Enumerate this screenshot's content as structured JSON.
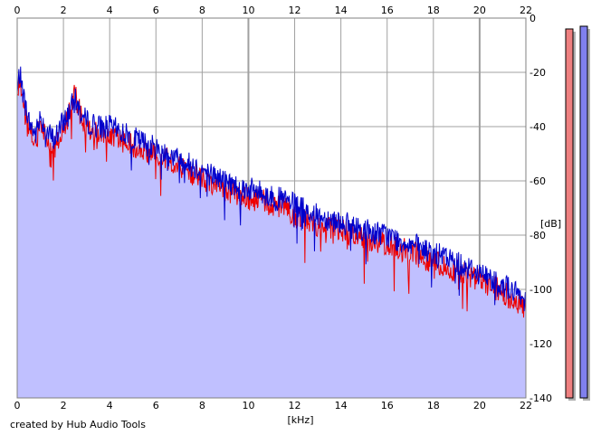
{
  "credit": "created by Hub Audio Tools",
  "chart_data": {
    "type": "area",
    "xlabel": "[kHz]",
    "ylabel": "[dB]",
    "xlim": [
      0,
      22
    ],
    "ylim": [
      -140,
      0
    ],
    "x_ticks": [
      0,
      2,
      4,
      6,
      8,
      10,
      12,
      14,
      16,
      18,
      20,
      22
    ],
    "y_ticks": [
      0,
      -20,
      -40,
      -60,
      -80,
      -100,
      -120,
      -140
    ],
    "grid": true,
    "colors": {
      "background": "#ffffff",
      "fill": "#c0c0ff",
      "blue_line": "#0000cc",
      "red_line": "#ee0000",
      "grid": "#a0a0a0"
    },
    "series": [
      {
        "color": "#0000cc",
        "x": [
          0,
          0.1,
          0.3,
          0.5,
          0.8,
          1.0,
          1.3,
          1.6,
          2.0,
          2.2,
          2.5,
          2.8,
          3.0,
          3.5,
          4.0,
          4.5,
          5.0,
          5.5,
          6.0,
          6.5,
          7.0,
          7.5,
          8.0,
          8.5,
          9.0,
          9.5,
          10.0,
          10.5,
          11.0,
          11.5,
          12.0,
          12.5,
          13.0,
          13.5,
          14.0,
          14.5,
          15.0,
          15.5,
          16.0,
          16.5,
          17.0,
          17.5,
          18.0,
          18.5,
          19.0,
          19.5,
          20.0,
          20.5,
          21.0,
          21.5,
          22.0
        ],
        "values": [
          -28,
          -20,
          -30,
          -38,
          -43,
          -36,
          -42,
          -45,
          -38,
          -35,
          -30,
          -36,
          -38,
          -40,
          -40,
          -42,
          -44,
          -46,
          -48,
          -50,
          -52,
          -54,
          -56,
          -58,
          -60,
          -62,
          -63,
          -64,
          -66,
          -67,
          -69,
          -71,
          -73,
          -74,
          -75,
          -77,
          -78,
          -79,
          -80,
          -82,
          -83,
          -85,
          -87,
          -88,
          -90,
          -92,
          -94,
          -96,
          -98,
          -101,
          -104
        ]
      },
      {
        "color": "#ee0000",
        "x": [
          0,
          0.1,
          0.3,
          0.5,
          0.8,
          1.0,
          1.3,
          1.6,
          2.0,
          2.2,
          2.5,
          2.8,
          3.0,
          3.5,
          4.0,
          4.5,
          5.0,
          5.5,
          6.0,
          6.5,
          7.0,
          7.5,
          8.0,
          8.5,
          9.0,
          9.5,
          10.0,
          10.5,
          11.0,
          11.5,
          12.0,
          12.5,
          13.0,
          13.5,
          14.0,
          14.5,
          15.0,
          15.5,
          16.0,
          16.5,
          17.0,
          17.5,
          18.0,
          18.5,
          19.0,
          19.5,
          20.0,
          20.5,
          21.0,
          21.5,
          22.0
        ],
        "values": [
          -30,
          -22,
          -33,
          -42,
          -46,
          -39,
          -44,
          -48,
          -41,
          -37,
          -28,
          -38,
          -41,
          -42,
          -43,
          -45,
          -47,
          -49,
          -50,
          -52,
          -54,
          -57,
          -59,
          -61,
          -63,
          -65,
          -67,
          -67,
          -69,
          -70,
          -72,
          -74,
          -76,
          -77,
          -78,
          -80,
          -81,
          -82,
          -83,
          -85,
          -86,
          -88,
          -90,
          -91,
          -93,
          -95,
          -97,
          -99,
          -101,
          -104,
          -107
        ]
      }
    ],
    "meters": [
      {
        "color": "#ee8080",
        "level_db": -4
      },
      {
        "color": "#8080ee",
        "level_db": -3
      }
    ]
  }
}
